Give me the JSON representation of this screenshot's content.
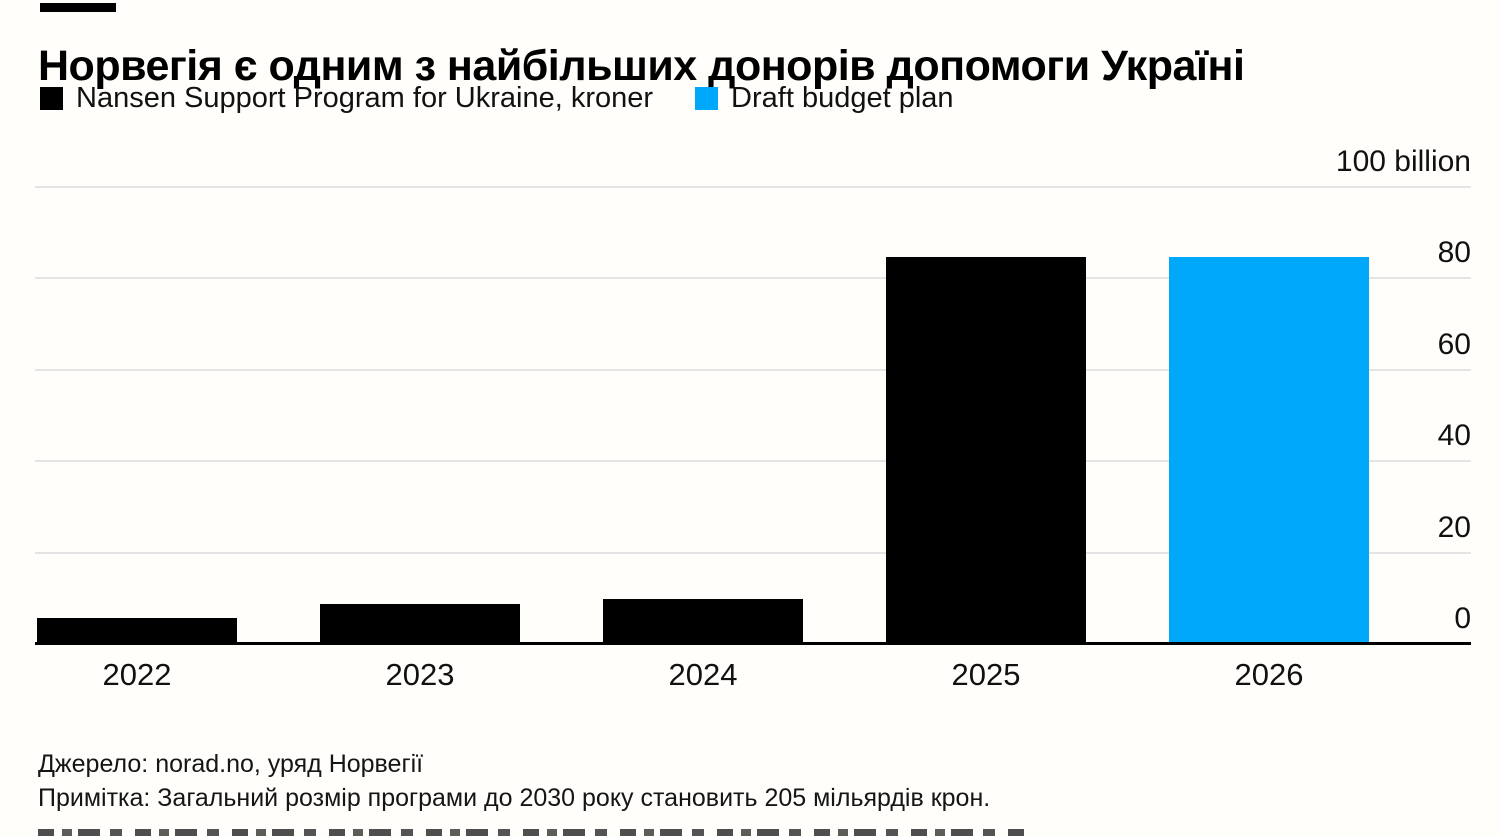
{
  "title": "Норвегія є одним з найбільших донорів допомоги Україні",
  "legend": [
    {
      "label": "Nansen Support Program for Ukraine, kroner",
      "color": "#000000",
      "swatch_icon": "black-square-swatch"
    },
    {
      "label": "Draft budget plan",
      "color": "#00a8fc",
      "swatch_icon": "blue-square-swatch"
    }
  ],
  "chart_data": {
    "type": "bar",
    "categories": [
      "2022",
      "2023",
      "2024",
      "2025",
      "2026"
    ],
    "series": [
      {
        "name": "Nansen Support Program for Ukraine, kroner",
        "color": "#000000",
        "values": [
          6,
          9,
          10,
          85,
          null
        ]
      },
      {
        "name": "Draft budget plan",
        "color": "#00a8fc",
        "values": [
          null,
          null,
          null,
          null,
          85
        ]
      }
    ],
    "title": "Норвегія є одним з найбільших донорів допомоги Україні",
    "xlabel": "",
    "ylabel": "kroner, billions",
    "ylim": [
      0,
      100
    ],
    "yticks": [
      0,
      20,
      40,
      60,
      80,
      100
    ],
    "ytick_labels": [
      "0",
      "20",
      "40",
      "60",
      "80",
      "100 billion"
    ],
    "grid": "horizontal",
    "legend_position": "top-left",
    "axis_side": "right",
    "gridline_color": "#e4e4e4",
    "baseline_color": "#000000"
  },
  "footer": {
    "source": "Джерело: norad.no, уряд Норвегії",
    "note": "Примітка: Загальний розмір програми до 2030 року становить 205 мільярдів крон."
  }
}
